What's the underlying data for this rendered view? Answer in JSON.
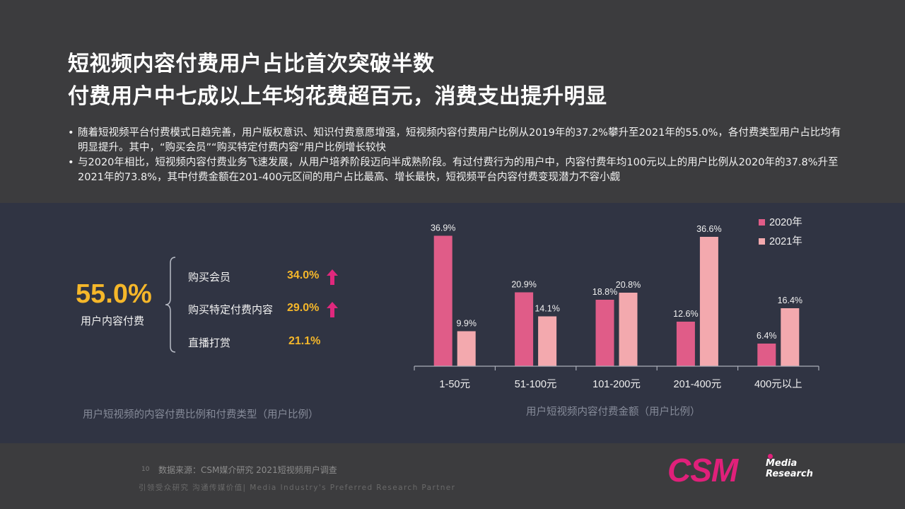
{
  "slide": {
    "title_line1": "短视频内容付费用户占比首次突破半数",
    "title_line2": "付费用户中七成以上年均花费超百元，消费支出提升明显",
    "bullets": [
      "随着短视频平台付费模式日趋完善，用户版权意识、知识付费意愿增强，短视频内容付费用户比例从2019年的37.2%攀升至2021年的55.0%，各付费类型用户占比均有明显提升。其中，“购买会员”“购买特定付费内容”用户比例增长较快",
      "与2020年相比，短视频内容付费业务飞速发展，从用户培养阶段迈向半成熟阶段。有过付费行为的用户中，内容付费年均100元以上的用户比例从2020年的37.8%升至2021年的73.8%，其中付费金额在201-400元区间的用户占比最高、增长最快，短视频平台内容付费变现潜力不容小觑"
    ]
  },
  "left_panel": {
    "big_value": "55.0%",
    "big_label": "用户内容付费",
    "types": [
      {
        "label": "购买会员",
        "value": "34.0%",
        "trend": "up"
      },
      {
        "label": "购买特定付费内容",
        "value": "29.0%",
        "trend": "up"
      },
      {
        "label": "直播打赏",
        "value": "21.1%",
        "trend": "none"
      }
    ],
    "caption": "用户短视频的内容付费比例和付费类型（用户比例）",
    "arrow_color": "#e0287d",
    "value_color": "#f5b72a"
  },
  "chart_data": {
    "type": "bar",
    "categories": [
      "1-50元",
      "51-100元",
      "101-200元",
      "201-400元",
      "400元以上"
    ],
    "series": [
      {
        "name": "2020年",
        "values": [
          36.9,
          20.9,
          18.8,
          12.6,
          6.4
        ],
        "color": "#e05c88"
      },
      {
        "name": "2021年",
        "values": [
          9.9,
          14.1,
          20.8,
          36.6,
          16.4
        ],
        "color": "#f3a9ae"
      }
    ],
    "value_labels": [
      [
        "36.9%",
        "20.9%",
        "18.8%",
        "12.6%",
        "6.4%"
      ],
      [
        "9.9%",
        "14.1%",
        "20.8%",
        "36.6%",
        "16.4%"
      ]
    ],
    "ylim": [
      0,
      40
    ],
    "legend": "top-right",
    "caption": "用户短视频内容付费金额（用户比例）"
  },
  "footer": {
    "page_number": "10",
    "source": "数据来源：CSM媒介研究 2021短视频用户调查",
    "tagline": "引领受众研究 沟通传媒价值| Media Industry's Preferred Research Partner",
    "logo": "CSM",
    "logo_sub1": "Media",
    "logo_sub2": "Research"
  }
}
